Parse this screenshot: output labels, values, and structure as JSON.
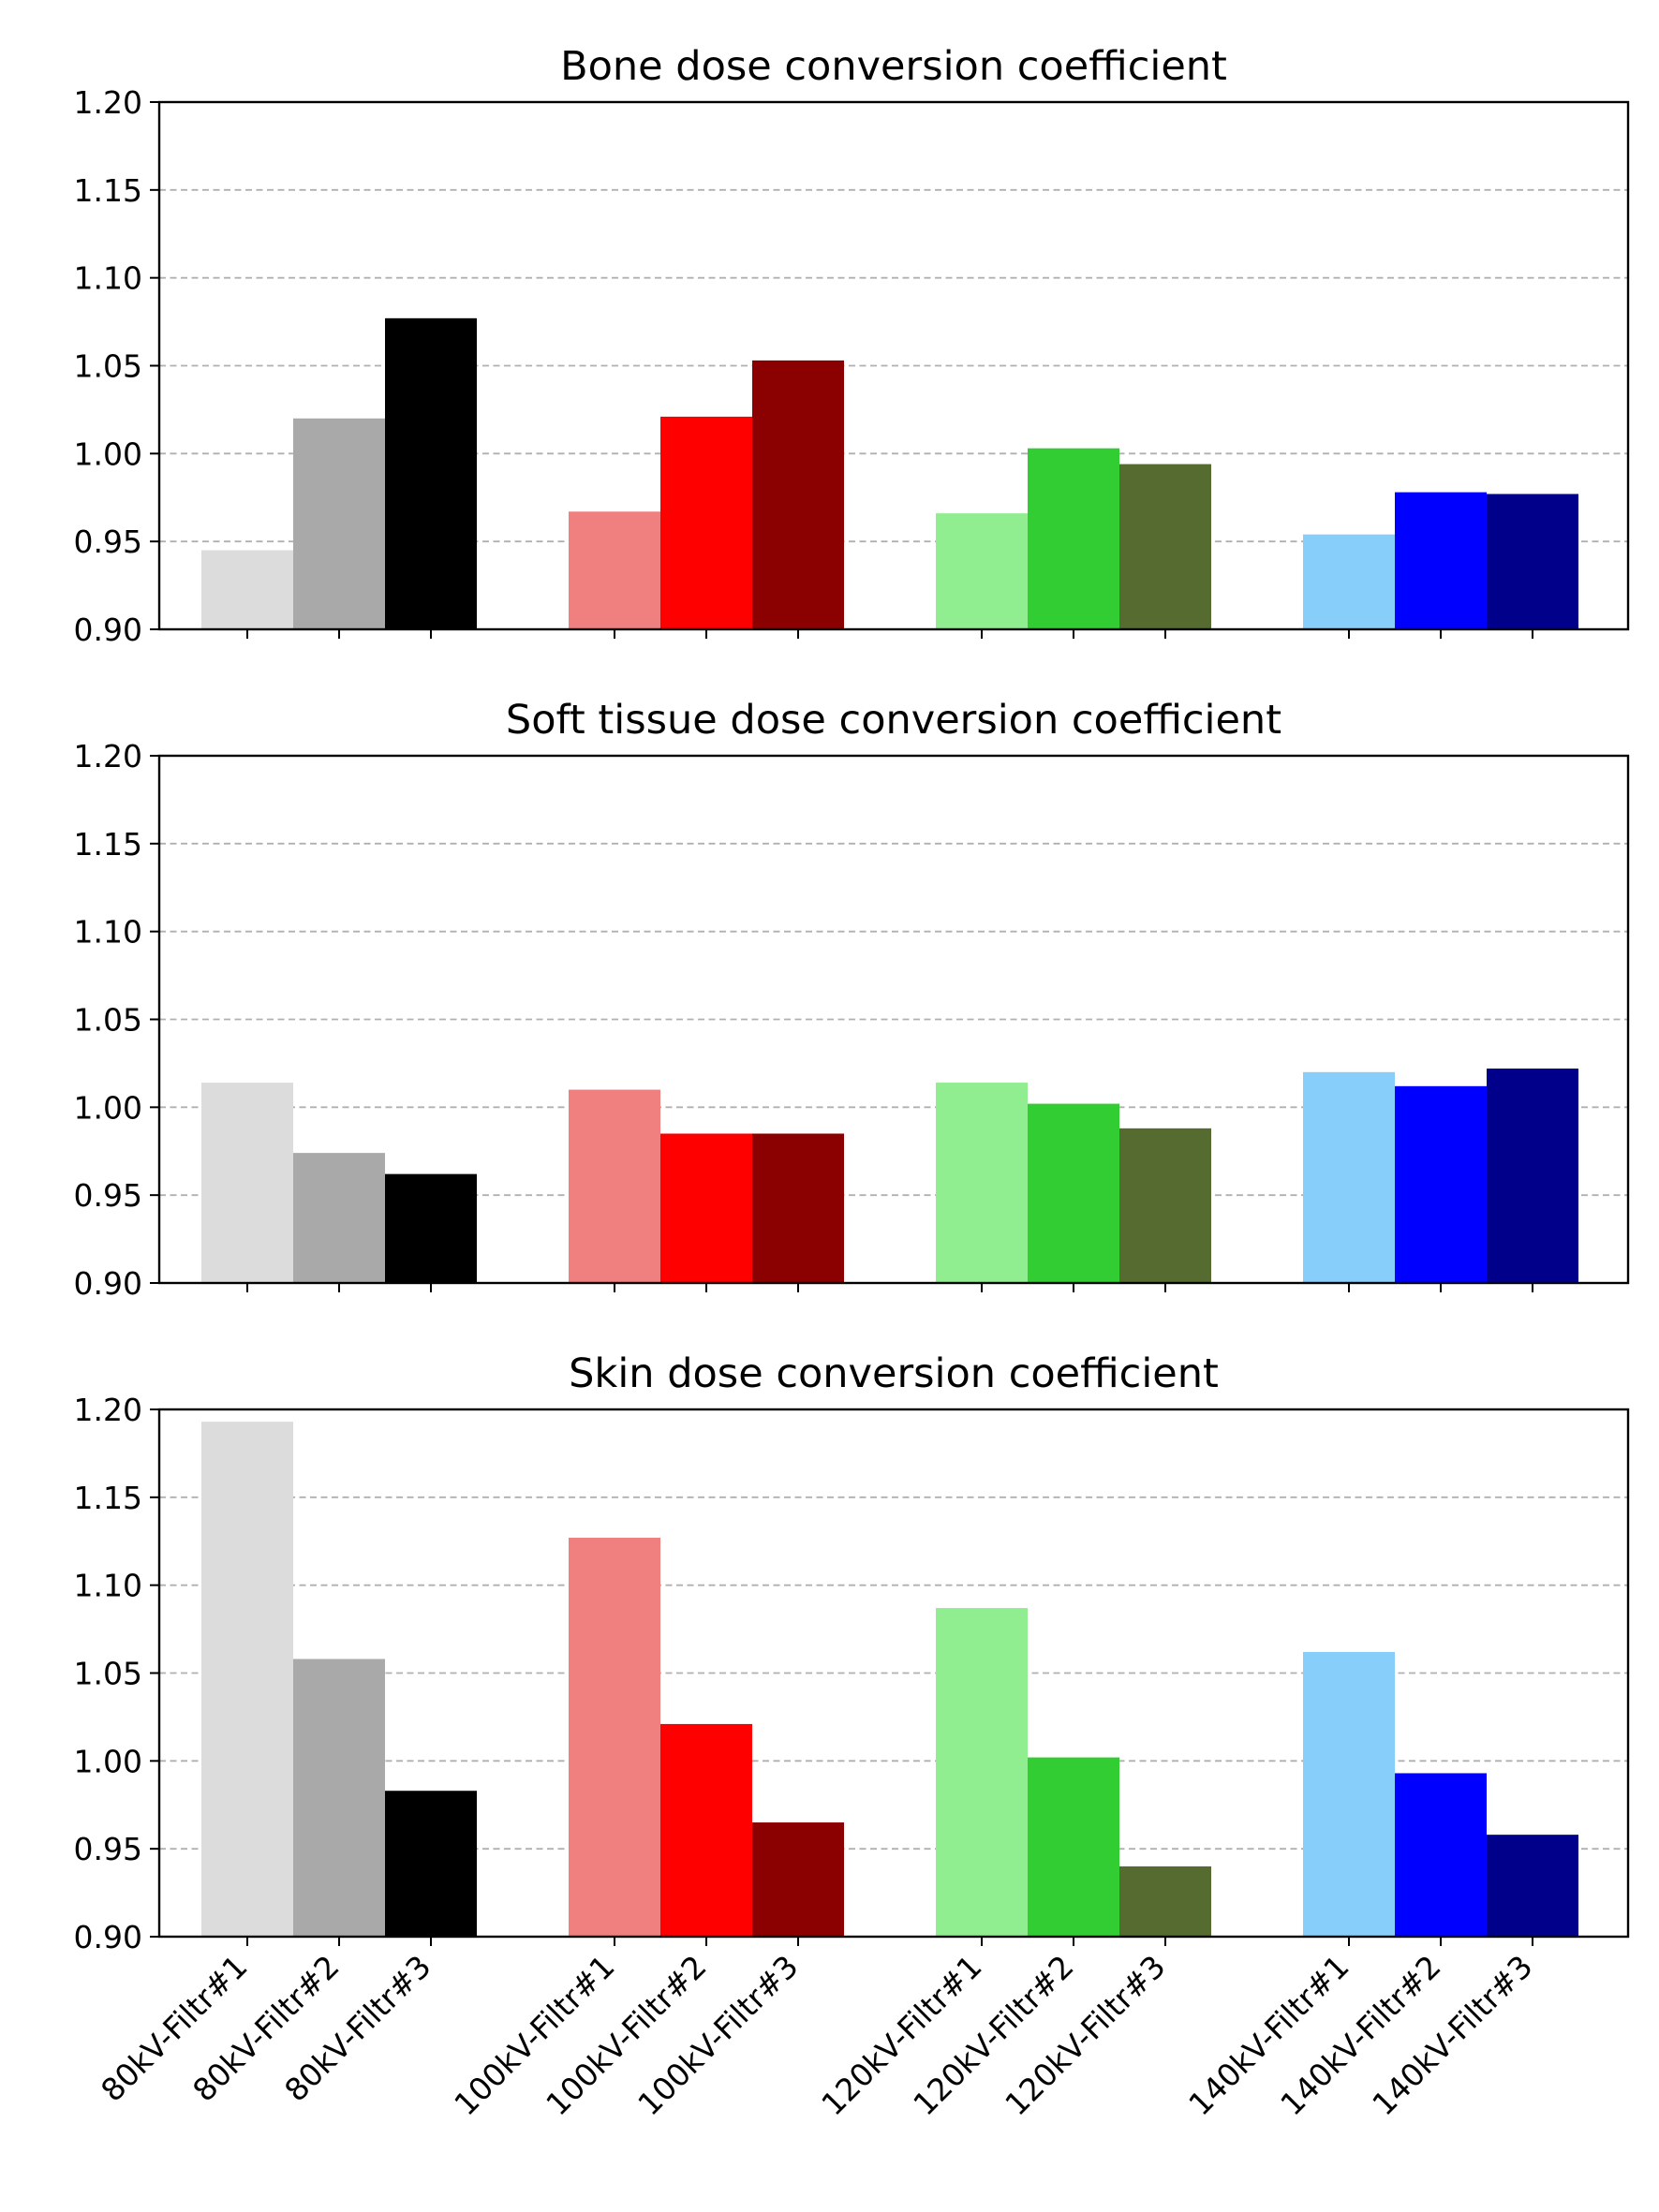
{
  "figure": {
    "name": "dose-conversion-coefficient-figure"
  },
  "chart_data": [
    {
      "type": "bar",
      "title": "Bone dose conversion coefficient",
      "xlabel": "",
      "ylabel": "",
      "ylim": [
        0.9,
        1.2
      ],
      "yticks": [
        "0.90",
        "0.95",
        "1.00",
        "1.05",
        "1.10",
        "1.15",
        "1.20"
      ],
      "grid": "y",
      "show_xticklabels": false,
      "categories": [
        "80kV-Filtr#1",
        "80kV-Filtr#2",
        "80kV-Filtr#3",
        "100kV-Filtr#1",
        "100kV-Filtr#2",
        "100kV-Filtr#3",
        "120kV-Filtr#1",
        "120kV-Filtr#2",
        "120kV-Filtr#3",
        "140kV-Filtr#1",
        "140kV-Filtr#2",
        "140kV-Filtr#3"
      ],
      "values": [
        0.945,
        1.02,
        1.077,
        0.967,
        1.021,
        1.053,
        0.966,
        1.003,
        0.994,
        0.954,
        0.978,
        0.977
      ],
      "colors": [
        "#dcdcdc",
        "#a9a9a9",
        "#000000",
        "#f08080",
        "#ff0000",
        "#8b0000",
        "#90ee90",
        "#32cd32",
        "#556b2f",
        "#87cefa",
        "#0000ff",
        "#00008b"
      ]
    },
    {
      "type": "bar",
      "title": "Soft tissue dose conversion coefficient",
      "xlabel": "",
      "ylabel": "",
      "ylim": [
        0.9,
        1.2
      ],
      "yticks": [
        "0.90",
        "0.95",
        "1.00",
        "1.05",
        "1.10",
        "1.15",
        "1.20"
      ],
      "grid": "y",
      "show_xticklabels": false,
      "categories": [
        "80kV-Filtr#1",
        "80kV-Filtr#2",
        "80kV-Filtr#3",
        "100kV-Filtr#1",
        "100kV-Filtr#2",
        "100kV-Filtr#3",
        "120kV-Filtr#1",
        "120kV-Filtr#2",
        "120kV-Filtr#3",
        "140kV-Filtr#1",
        "140kV-Filtr#2",
        "140kV-Filtr#3"
      ],
      "values": [
        1.014,
        0.974,
        0.962,
        1.01,
        0.985,
        0.985,
        1.014,
        1.002,
        0.988,
        1.02,
        1.012,
        1.022
      ],
      "colors": [
        "#dcdcdc",
        "#a9a9a9",
        "#000000",
        "#f08080",
        "#ff0000",
        "#8b0000",
        "#90ee90",
        "#32cd32",
        "#556b2f",
        "#87cefa",
        "#0000ff",
        "#00008b"
      ]
    },
    {
      "type": "bar",
      "title": "Skin dose conversion coefficient",
      "xlabel": "",
      "ylabel": "",
      "ylim": [
        0.9,
        1.2
      ],
      "yticks": [
        "0.90",
        "0.95",
        "1.00",
        "1.05",
        "1.10",
        "1.15",
        "1.20"
      ],
      "grid": "y",
      "show_xticklabels": true,
      "categories": [
        "80kV-Filtr#1",
        "80kV-Filtr#2",
        "80kV-Filtr#3",
        "100kV-Filtr#1",
        "100kV-Filtr#2",
        "100kV-Filtr#3",
        "120kV-Filtr#1",
        "120kV-Filtr#2",
        "120kV-Filtr#3",
        "140kV-Filtr#1",
        "140kV-Filtr#2",
        "140kV-Filtr#3"
      ],
      "values": [
        1.193,
        1.058,
        0.983,
        1.127,
        1.021,
        0.965,
        1.087,
        1.002,
        0.94,
        1.062,
        0.993,
        0.958
      ],
      "colors": [
        "#dcdcdc",
        "#a9a9a9",
        "#000000",
        "#f08080",
        "#ff0000",
        "#8b0000",
        "#90ee90",
        "#32cd32",
        "#556b2f",
        "#87cefa",
        "#0000ff",
        "#00008b"
      ]
    }
  ]
}
